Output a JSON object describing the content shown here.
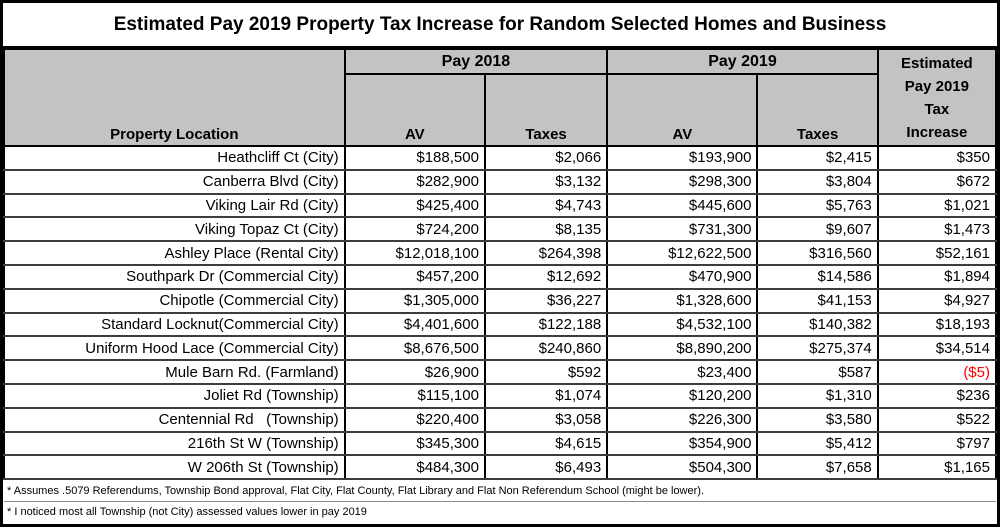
{
  "title": "Estimated Pay 2019 Property Tax Increase for Random Selected Homes and Business",
  "colors": {
    "header_bg": "#c3c3c3",
    "negative": "#ff0000",
    "border": "#000000"
  },
  "table": {
    "groups": {
      "pay2018": "Pay 2018",
      "pay2019": "Pay 2019"
    },
    "headers": {
      "property_location": "Property Location",
      "av": "AV",
      "taxes": "Taxes",
      "estimated_lines": [
        "Estimated",
        "Pay 2019",
        "Tax",
        "Increase"
      ]
    },
    "rows": [
      {
        "location": "Heathcliff Ct (City)",
        "av_2018": "$188,500",
        "taxes_2018": "$2,066",
        "av_2019": "$193,900",
        "taxes_2019": "$2,415",
        "increase": "$350",
        "negative": false
      },
      {
        "location": "Canberra Blvd (City)",
        "av_2018": "$282,900",
        "taxes_2018": "$3,132",
        "av_2019": "$298,300",
        "taxes_2019": "$3,804",
        "increase": "$672",
        "negative": false
      },
      {
        "location": "Viking Lair Rd (City)",
        "av_2018": "$425,400",
        "taxes_2018": "$4,743",
        "av_2019": "$445,600",
        "taxes_2019": "$5,763",
        "increase": "$1,021",
        "negative": false
      },
      {
        "location": "Viking Topaz Ct (City)",
        "av_2018": "$724,200",
        "taxes_2018": "$8,135",
        "av_2019": "$731,300",
        "taxes_2019": "$9,607",
        "increase": "$1,473",
        "negative": false
      },
      {
        "location": "Ashley Place (Rental City)",
        "av_2018": "$12,018,100",
        "taxes_2018": "$264,398",
        "av_2019": "$12,622,500",
        "taxes_2019": "$316,560",
        "increase": "$52,161",
        "negative": false
      },
      {
        "location": "Southpark Dr (Commercial City)",
        "av_2018": "$457,200",
        "taxes_2018": "$12,692",
        "av_2019": "$470,900",
        "taxes_2019": "$14,586",
        "increase": "$1,894",
        "negative": false
      },
      {
        "location": "Chipotle (Commercial City)",
        "av_2018": "$1,305,000",
        "taxes_2018": "$36,227",
        "av_2019": "$1,328,600",
        "taxes_2019": "$41,153",
        "increase": "$4,927",
        "negative": false
      },
      {
        "location": "Standard Locknut(Commercial City)",
        "av_2018": "$4,401,600",
        "taxes_2018": "$122,188",
        "av_2019": "$4,532,100",
        "taxes_2019": "$140,382",
        "increase": "$18,193",
        "negative": false
      },
      {
        "location": "Uniform Hood Lace (Commercial City)",
        "av_2018": "$8,676,500",
        "taxes_2018": "$240,860",
        "av_2019": "$8,890,200",
        "taxes_2019": "$275,374",
        "increase": "$34,514",
        "negative": false
      },
      {
        "location": "Mule Barn Rd. (Farmland)",
        "av_2018": "$26,900",
        "taxes_2018": "$592",
        "av_2019": "$23,400",
        "taxes_2019": "$587",
        "increase": "($5)",
        "negative": true
      },
      {
        "location": "Joliet Rd (Township)",
        "av_2018": "$115,100",
        "taxes_2018": "$1,074",
        "av_2019": "$120,200",
        "taxes_2019": "$1,310",
        "increase": "$236",
        "negative": false
      },
      {
        "location": "Centennial Rd   (Township)",
        "av_2018": "$220,400",
        "taxes_2018": "$3,058",
        "av_2019": "$226,300",
        "taxes_2019": "$3,580",
        "increase": "$522",
        "negative": false
      },
      {
        "location": "216th St W (Township)",
        "av_2018": "$345,300",
        "taxes_2018": "$4,615",
        "av_2019": "$354,900",
        "taxes_2019": "$5,412",
        "increase": "$797",
        "negative": false
      },
      {
        "location": "W 206th St (Township)",
        "av_2018": "$484,300",
        "taxes_2018": "$6,493",
        "av_2019": "$504,300",
        "taxes_2019": "$7,658",
        "increase": "$1,165",
        "negative": false
      }
    ]
  },
  "footnotes": [
    "* Assumes .5079 Referendums, Township Bond approval, Flat City, Flat County, Flat Library and Flat Non Referendum School (might be lower).",
    "* I noticed most all Township (not City) assessed values lower in pay 2019"
  ]
}
